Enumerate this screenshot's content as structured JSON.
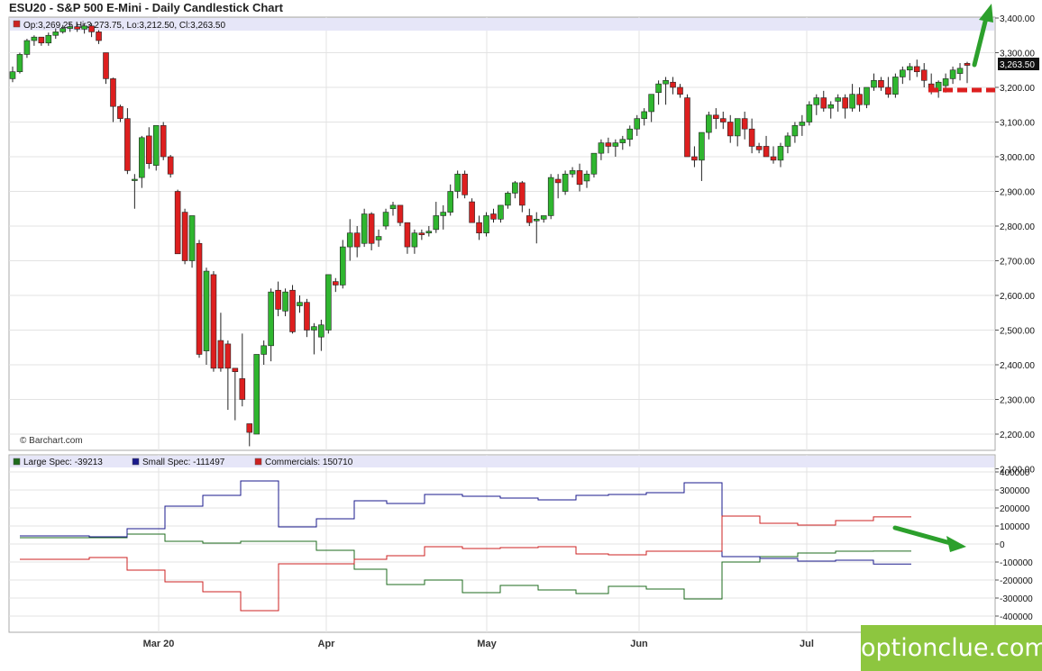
{
  "chart_data": [
    {
      "type": "candlestick",
      "title": "ESU20 - S&P 500 E-Mini - Daily Candlestick Chart",
      "ohlc_label": "Op:3,269.25 Hi:3,273.75, Lo:3,212.50, Cl:3,263.50",
      "credit": "© Barchart.com",
      "last_price_label": "3,263.50",
      "ylim": [
        2100,
        3400
      ],
      "y_ticks": [
        "3,400.00",
        "3,300.00",
        "3,200.00",
        "3,100.00",
        "3,000.00",
        "2,900.00",
        "2,800.00",
        "2,700.00",
        "2,600.00",
        "2,500.00",
        "2,400.00",
        "2,300.00",
        "2,200.00",
        "2,100.00"
      ],
      "x_ticks": [
        "Mar 20",
        "Apr",
        "May",
        "Jun",
        "Jul"
      ],
      "grid": true,
      "colors": {
        "up": "#2fb62f",
        "down": "#dd1f1f",
        "outline": "#222222",
        "annotation": "#2ca02c",
        "support": "#dd1f1f"
      },
      "candles": [
        [
          3225,
          3260,
          3215,
          3245
        ],
        [
          3245,
          3300,
          3240,
          3295
        ],
        [
          3295,
          3340,
          3285,
          3335
        ],
        [
          3335,
          3350,
          3320,
          3345
        ],
        [
          3345,
          3345,
          3320,
          3328
        ],
        [
          3328,
          3358,
          3320,
          3350
        ],
        [
          3350,
          3370,
          3340,
          3360
        ],
        [
          3360,
          3380,
          3355,
          3370
        ],
        [
          3370,
          3385,
          3360,
          3375
        ],
        [
          3375,
          3385,
          3360,
          3368
        ],
        [
          3368,
          3385,
          3355,
          3377
        ],
        [
          3377,
          3385,
          3345,
          3360
        ],
        [
          3360,
          3365,
          3325,
          3335
        ],
        [
          3300,
          3300,
          3210,
          3225
        ],
        [
          3225,
          3228,
          3100,
          3145
        ],
        [
          3145,
          3150,
          3100,
          3110
        ],
        [
          3110,
          3140,
          2950,
          2960
        ],
        [
          2935,
          2950,
          2850,
          2935
        ],
        [
          2940,
          3060,
          2910,
          3055
        ],
        [
          3060,
          3085,
          2965,
          2980
        ],
        [
          2975,
          3080,
          2960,
          3090
        ],
        [
          3090,
          3100,
          2990,
          3000
        ],
        [
          3000,
          3005,
          2940,
          2950
        ],
        [
          2900,
          2905,
          2720,
          2720
        ],
        [
          2840,
          2850,
          2690,
          2700
        ],
        [
          2700,
          2830,
          2680,
          2830
        ],
        [
          2750,
          2760,
          2420,
          2430
        ],
        [
          2440,
          2680,
          2400,
          2670
        ],
        [
          2660,
          2670,
          2380,
          2390
        ],
        [
          2470,
          2550,
          2380,
          2390
        ],
        [
          2460,
          2470,
          2270,
          2390
        ],
        [
          2390,
          2390,
          2240,
          2380
        ],
        [
          2360,
          2490,
          2280,
          2300
        ],
        [
          2230,
          2230,
          2165,
          2205
        ],
        [
          2200,
          2430,
          2200,
          2430
        ],
        [
          2430,
          2470,
          2400,
          2455
        ],
        [
          2455,
          2620,
          2410,
          2610
        ],
        [
          2615,
          2640,
          2540,
          2560
        ],
        [
          2555,
          2620,
          2540,
          2610
        ],
        [
          2615,
          2630,
          2490,
          2495
        ],
        [
          2570,
          2600,
          2550,
          2580
        ],
        [
          2580,
          2590,
          2480,
          2500
        ],
        [
          2500,
          2520,
          2430,
          2510
        ],
        [
          2480,
          2530,
          2440,
          2515
        ],
        [
          2500,
          2660,
          2490,
          2660
        ],
        [
          2640,
          2650,
          2610,
          2630
        ],
        [
          2630,
          2760,
          2620,
          2740
        ],
        [
          2740,
          2820,
          2700,
          2780
        ],
        [
          2780,
          2800,
          2710,
          2740
        ],
        [
          2750,
          2850,
          2740,
          2835
        ],
        [
          2835,
          2840,
          2730,
          2750
        ],
        [
          2760,
          2790,
          2740,
          2770
        ],
        [
          2800,
          2850,
          2790,
          2840
        ],
        [
          2850,
          2870,
          2830,
          2860
        ],
        [
          2860,
          2860,
          2800,
          2810
        ],
        [
          2810,
          2810,
          2720,
          2740
        ],
        [
          2740,
          2790,
          2720,
          2780
        ],
        [
          2780,
          2790,
          2760,
          2775
        ],
        [
          2780,
          2800,
          2770,
          2785
        ],
        [
          2790,
          2870,
          2780,
          2830
        ],
        [
          2830,
          2860,
          2790,
          2840
        ],
        [
          2840,
          2920,
          2830,
          2900
        ],
        [
          2900,
          2960,
          2880,
          2950
        ],
        [
          2950,
          2960,
          2880,
          2890
        ],
        [
          2870,
          2880,
          2820,
          2810
        ],
        [
          2810,
          2830,
          2760,
          2780
        ],
        [
          2780,
          2840,
          2770,
          2830
        ],
        [
          2835,
          2850,
          2810,
          2820
        ],
        [
          2820,
          2860,
          2810,
          2860
        ],
        [
          2860,
          2900,
          2850,
          2895
        ],
        [
          2895,
          2930,
          2880,
          2925
        ],
        [
          2925,
          2930,
          2840,
          2860
        ],
        [
          2830,
          2850,
          2800,
          2810
        ],
        [
          2815,
          2840,
          2750,
          2820
        ],
        [
          2820,
          2830,
          2810,
          2830
        ],
        [
          2830,
          2950,
          2820,
          2940
        ],
        [
          2935,
          2950,
          2880,
          2925
        ],
        [
          2900,
          2960,
          2890,
          2950
        ],
        [
          2950,
          2970,
          2940,
          2960
        ],
        [
          2960,
          2980,
          2900,
          2920
        ],
        [
          2930,
          2960,
          2910,
          2950
        ],
        [
          2950,
          3010,
          2940,
          3010
        ],
        [
          3010,
          3050,
          2990,
          3040
        ],
        [
          3040,
          3055,
          3010,
          3030
        ],
        [
          3030,
          3050,
          3000,
          3040
        ],
        [
          3040,
          3060,
          3020,
          3050
        ],
        [
          3050,
          3090,
          3030,
          3080
        ],
        [
          3080,
          3120,
          3060,
          3110
        ],
        [
          3110,
          3140,
          3090,
          3130
        ],
        [
          3130,
          3180,
          3100,
          3180
        ],
        [
          3185,
          3220,
          3150,
          3210
        ],
        [
          3210,
          3230,
          3150,
          3220
        ],
        [
          3215,
          3230,
          3180,
          3200
        ],
        [
          3200,
          3210,
          3170,
          3180
        ],
        [
          3170,
          3180,
          3000,
          3000
        ],
        [
          3000,
          3030,
          2970,
          2990
        ],
        [
          2990,
          3070,
          2930,
          3070
        ],
        [
          3070,
          3130,
          3050,
          3120
        ],
        [
          3120,
          3140,
          3080,
          3110
        ],
        [
          3110,
          3130,
          3080,
          3100
        ],
        [
          3100,
          3120,
          3040,
          3060
        ],
        [
          3060,
          3110,
          3030,
          3110
        ],
        [
          3110,
          3130,
          3050,
          3080
        ],
        [
          3080,
          3110,
          3010,
          3030
        ],
        [
          3030,
          3040,
          3010,
          3020
        ],
        [
          3030,
          3060,
          3010,
          3000
        ],
        [
          3000,
          3030,
          2980,
          2990
        ],
        [
          2990,
          3040,
          2970,
          3030
        ],
        [
          3030,
          3070,
          3010,
          3060
        ],
        [
          3060,
          3100,
          3040,
          3090
        ],
        [
          3090,
          3120,
          3060,
          3100
        ],
        [
          3100,
          3160,
          3090,
          3150
        ],
        [
          3150,
          3180,
          3120,
          3170
        ],
        [
          3170,
          3190,
          3130,
          3140
        ],
        [
          3140,
          3160,
          3110,
          3150
        ],
        [
          3160,
          3180,
          3130,
          3170
        ],
        [
          3170,
          3180,
          3110,
          3140
        ],
        [
          3140,
          3210,
          3130,
          3180
        ],
        [
          3180,
          3200,
          3130,
          3150
        ],
        [
          3150,
          3200,
          3140,
          3200
        ],
        [
          3200,
          3240,
          3190,
          3220
        ],
        [
          3220,
          3230,
          3190,
          3200
        ],
        [
          3200,
          3230,
          3170,
          3180
        ],
        [
          3180,
          3240,
          3170,
          3230
        ],
        [
          3230,
          3260,
          3210,
          3250
        ],
        [
          3250,
          3270,
          3220,
          3260
        ],
        [
          3260,
          3280,
          3230,
          3245
        ],
        [
          3250,
          3270,
          3200,
          3220
        ],
        [
          3210,
          3240,
          3180,
          3190
        ],
        [
          3190,
          3220,
          3170,
          3215
        ],
        [
          3205,
          3240,
          3185,
          3225
        ],
        [
          3225,
          3260,
          3210,
          3250
        ],
        [
          3240,
          3270,
          3220,
          3255
        ],
        [
          3269.25,
          3273.75,
          3212.5,
          3263.5
        ]
      ]
    },
    {
      "type": "line",
      "step": true,
      "ylim": [
        -450000,
        450000
      ],
      "y_ticks": [
        "400000",
        "300000",
        "200000",
        "100000",
        "0",
        "-100000",
        "-200000",
        "-300000",
        "-400000"
      ],
      "grid": true,
      "series": [
        {
          "name": "Large Spec: -39213",
          "color": "#1e6b1e",
          "values": [
            35000,
            35000,
            35000,
            55000,
            15000,
            5000,
            15000,
            15000,
            -35000,
            -140000,
            -225000,
            -200000,
            -270000,
            -230000,
            -255000,
            -275000,
            -235000,
            -250000,
            -305000,
            -100000,
            -70000,
            -50000,
            -40000,
            -39213
          ]
        },
        {
          "name": "Small Spec: -111497",
          "color": "#1a1a8c",
          "values": [
            45000,
            45000,
            40000,
            85000,
            210000,
            270000,
            350000,
            95000,
            140000,
            240000,
            225000,
            275000,
            265000,
            255000,
            245000,
            270000,
            275000,
            285000,
            340000,
            -70000,
            -80000,
            -95000,
            -90000,
            -111497
          ]
        },
        {
          "name": "Commercials: 150710",
          "color": "#cc2222",
          "values": [
            -85000,
            -85000,
            -75000,
            -145000,
            -210000,
            -265000,
            -370000,
            -110000,
            -110000,
            -85000,
            -65000,
            -15000,
            -25000,
            -20000,
            -15000,
            -55000,
            -60000,
            -40000,
            -40000,
            155000,
            115000,
            105000,
            130000,
            150710
          ]
        }
      ]
    }
  ],
  "brand": "optionclue.com"
}
